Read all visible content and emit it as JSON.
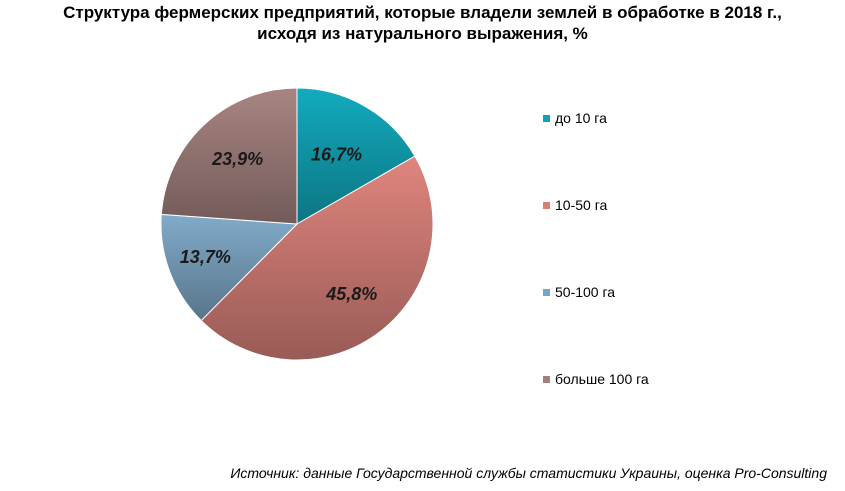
{
  "chart_data": {
    "type": "pie",
    "title": "Структура фермерских предприятий, которые владели землей в обработке в 2018 г., исходя из натурального выражения, %",
    "title_lines": [
      "Структура фермерских предприятий, которые владели землей в обработке в 2018 г.,",
      "исходя из натурального выражения, %"
    ],
    "categories": [
      "до 10 га",
      "10-50 га",
      "50-100 га",
      "больше 100 га"
    ],
    "values": [
      16.7,
      45.8,
      13.7,
      23.9
    ],
    "data_labels": [
      "16,7%",
      "45,8%",
      "13,7%",
      "23,9%"
    ],
    "colors": [
      "#11a3b5",
      "#d47f77",
      "#7ba3c0",
      "#a07f7c"
    ],
    "start_angle_deg": 0,
    "direction": "clockwise",
    "legend_position": "right"
  },
  "source_note": "Источник: данные Государственной службы статистики Украины, оценка Pro-Consulting"
}
